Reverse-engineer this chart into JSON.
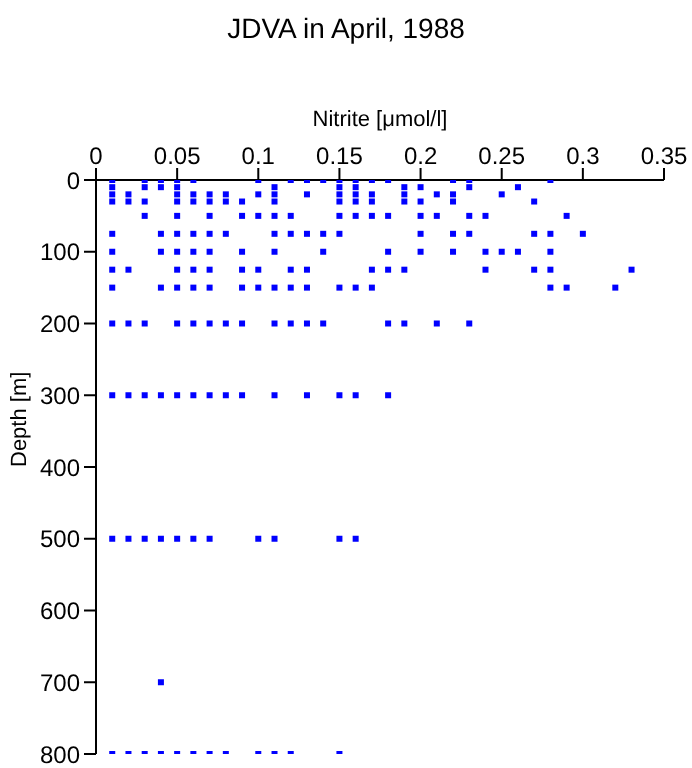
{
  "chart_data": {
    "type": "scatter",
    "title": "JDVA in April, 1988",
    "xlabel": "Nitrite [μmol/l]",
    "ylabel": "Depth [m]",
    "xlim": [
      0,
      0.35
    ],
    "xticks": [
      0,
      0.05,
      0.1,
      0.15,
      0.2,
      0.25,
      0.3,
      0.35
    ],
    "ylim": [
      800,
      0
    ],
    "yticks": [
      0,
      100,
      200,
      300,
      400,
      500,
      600,
      700,
      800
    ],
    "marker": "square",
    "grid": false,
    "legend": false,
    "series": [
      {
        "color": "#0000ff",
        "x": [
          0.01,
          0.03,
          0.04,
          0.05,
          0.06,
          0.1,
          0.12,
          0.13,
          0.14,
          0.15,
          0.16,
          0.17,
          0.18,
          0.22,
          0.23,
          0.28,
          0.01,
          0.03,
          0.04,
          0.05,
          0.11,
          0.15,
          0.16,
          0.19,
          0.2,
          0.23,
          0.26,
          0.01,
          0.02,
          0.05,
          0.06,
          0.07,
          0.08,
          0.1,
          0.11,
          0.13,
          0.15,
          0.16,
          0.17,
          0.19,
          0.21,
          0.22,
          0.25,
          0.01,
          0.02,
          0.03,
          0.05,
          0.06,
          0.07,
          0.08,
          0.09,
          0.11,
          0.15,
          0.16,
          0.17,
          0.19,
          0.2,
          0.22,
          0.27,
          0.03,
          0.05,
          0.07,
          0.09,
          0.1,
          0.11,
          0.12,
          0.15,
          0.16,
          0.17,
          0.18,
          0.2,
          0.21,
          0.23,
          0.24,
          0.29,
          0.01,
          0.04,
          0.05,
          0.06,
          0.07,
          0.08,
          0.11,
          0.12,
          0.13,
          0.14,
          0.15,
          0.2,
          0.22,
          0.23,
          0.27,
          0.28,
          0.3,
          0.01,
          0.04,
          0.05,
          0.06,
          0.07,
          0.09,
          0.11,
          0.14,
          0.18,
          0.2,
          0.22,
          0.24,
          0.25,
          0.26,
          0.28,
          0.01,
          0.02,
          0.05,
          0.06,
          0.07,
          0.09,
          0.1,
          0.12,
          0.13,
          0.17,
          0.18,
          0.19,
          0.24,
          0.27,
          0.28,
          0.33,
          0.01,
          0.04,
          0.05,
          0.06,
          0.07,
          0.09,
          0.1,
          0.11,
          0.12,
          0.13,
          0.15,
          0.16,
          0.17,
          0.28,
          0.29,
          0.32,
          0.01,
          0.02,
          0.03,
          0.05,
          0.06,
          0.07,
          0.08,
          0.09,
          0.11,
          0.12,
          0.13,
          0.14,
          0.18,
          0.19,
          0.21,
          0.23,
          0.01,
          0.02,
          0.03,
          0.04,
          0.05,
          0.06,
          0.07,
          0.08,
          0.09,
          0.11,
          0.13,
          0.15,
          0.16,
          0.18,
          0.01,
          0.02,
          0.03,
          0.04,
          0.05,
          0.06,
          0.07,
          0.1,
          0.11,
          0.15,
          0.16,
          0.04,
          0.01,
          0.02,
          0.03,
          0.04,
          0.05,
          0.06,
          0.07,
          0.08,
          0.1,
          0.11,
          0.12,
          0.15
        ],
        "values": [
          0,
          0,
          0,
          0,
          0,
          0,
          0,
          0,
          0,
          0,
          0,
          0,
          0,
          0,
          0,
          0,
          10,
          10,
          10,
          10,
          10,
          10,
          10,
          10,
          10,
          10,
          10,
          20,
          20,
          20,
          20,
          20,
          20,
          20,
          20,
          20,
          20,
          20,
          20,
          20,
          20,
          20,
          20,
          30,
          30,
          30,
          30,
          30,
          30,
          30,
          30,
          30,
          30,
          30,
          30,
          30,
          30,
          30,
          30,
          50,
          50,
          50,
          50,
          50,
          50,
          50,
          50,
          50,
          50,
          50,
          50,
          50,
          50,
          50,
          50,
          75,
          75,
          75,
          75,
          75,
          75,
          75,
          75,
          75,
          75,
          75,
          75,
          75,
          75,
          75,
          75,
          75,
          100,
          100,
          100,
          100,
          100,
          100,
          100,
          100,
          100,
          100,
          100,
          100,
          100,
          100,
          100,
          125,
          125,
          125,
          125,
          125,
          125,
          125,
          125,
          125,
          125,
          125,
          125,
          125,
          125,
          125,
          125,
          150,
          150,
          150,
          150,
          150,
          150,
          150,
          150,
          150,
          150,
          150,
          150,
          150,
          150,
          150,
          150,
          200,
          200,
          200,
          200,
          200,
          200,
          200,
          200,
          200,
          200,
          200,
          200,
          200,
          200,
          200,
          200,
          300,
          300,
          300,
          300,
          300,
          300,
          300,
          300,
          300,
          300,
          300,
          300,
          300,
          300,
          500,
          500,
          500,
          500,
          500,
          500,
          500,
          500,
          500,
          500,
          500,
          700,
          800,
          800,
          800,
          800,
          800,
          800,
          800,
          800,
          800,
          800,
          800,
          800
        ]
      }
    ]
  }
}
